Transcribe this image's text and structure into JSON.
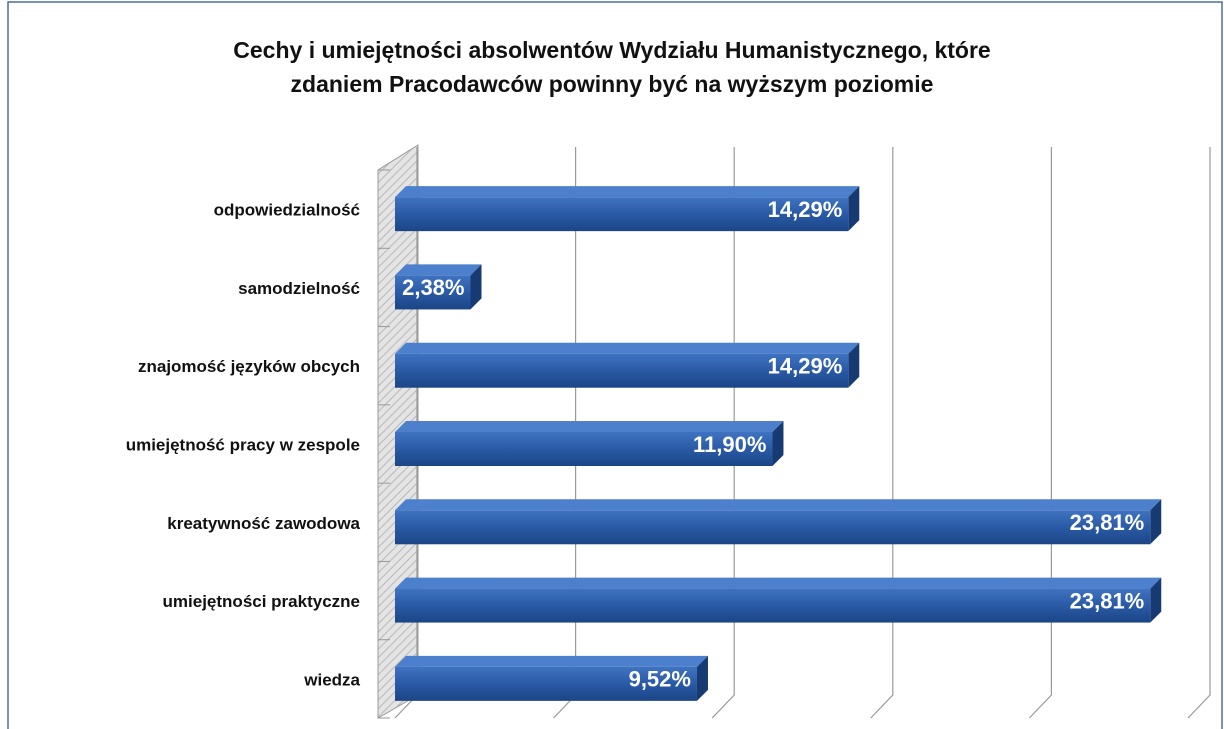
{
  "chart_data": {
    "type": "bar",
    "orientation": "horizontal",
    "title": [
      "Cechy i umiejętności absolwentów Wydziału Humanistycznego, które",
      "zdaniem Pracodawców powinny być na wyższym poziomie"
    ],
    "categories": [
      "odpowiedzialność",
      "samodzielność",
      "znajomość języków obcych",
      "umiejętność pracy w zespole",
      "kreatywność zawodowa",
      "umiejętności praktyczne",
      "wiedza"
    ],
    "values": [
      14.29,
      2.38,
      14.29,
      11.9,
      23.81,
      23.81,
      9.52
    ],
    "value_labels": [
      "14,29%",
      "2,38%",
      "14,29%",
      "11,90%",
      "23,81%",
      "23,81%",
      "9,52%"
    ],
    "color": "#2a5aa6",
    "xlim": [
      0,
      25
    ],
    "xticks": [
      0,
      5,
      10,
      15,
      20,
      25
    ],
    "grid": true
  }
}
